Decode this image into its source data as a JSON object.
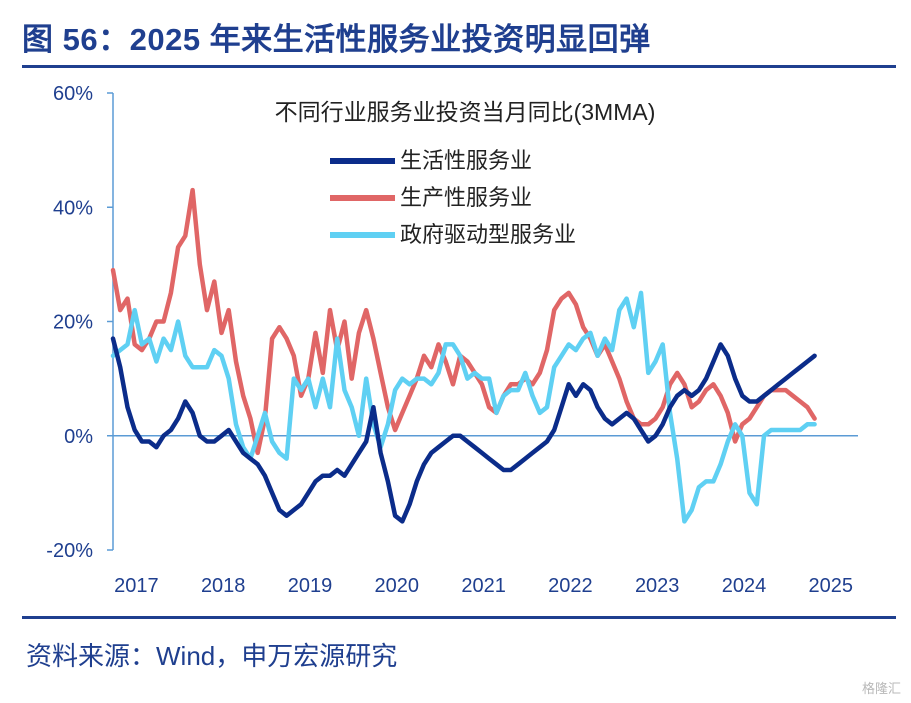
{
  "header": {
    "title": "图 56：2025 年来生活性服务业投资明显回弹"
  },
  "footer": {
    "source": "资料来源：Wind，申万宏源研究",
    "watermark": "格隆汇"
  },
  "colors": {
    "brand": "#1f3f8f",
    "series_dark_blue": "#0b2c8a",
    "series_red": "#e06666",
    "series_light_blue": "#5fd0f3"
  },
  "chart_data": {
    "type": "line",
    "title": "不同行业服务业投资当月同比(3MMA)",
    "xlabel": "",
    "ylabel": "",
    "x_start": "2017-01",
    "x_end": "2025-08",
    "x_ticks": [
      "2017",
      "2018",
      "2019",
      "2020",
      "2021",
      "2022",
      "2023",
      "2024",
      "2025"
    ],
    "y_ticks": [
      "60%",
      "40%",
      "20%",
      "0%",
      "-20%"
    ],
    "ylim": [
      -20,
      60
    ],
    "y_unit": "%",
    "legend_position": "top-center",
    "grid": false,
    "series": [
      {
        "name": "生活性服务业",
        "color": "#0b2c8a",
        "values": [
          17,
          12,
          5,
          1,
          -1,
          -1,
          -2,
          0,
          1,
          3,
          6,
          4,
          0,
          -1,
          -1,
          0,
          1,
          -1,
          -3,
          -4,
          -5,
          -7,
          -10,
          -13,
          -14,
          -13,
          -12,
          -10,
          -8,
          -7,
          -7,
          -6,
          -7,
          -5,
          -3,
          -1,
          5,
          -3,
          -8,
          -14,
          -15,
          -12,
          -8,
          -5,
          -3,
          -2,
          -1,
          0,
          0,
          -1,
          -2,
          -3,
          -4,
          -5,
          -6,
          -6,
          -5,
          -4,
          -3,
          -2,
          -1,
          1,
          5,
          9,
          7,
          9,
          8,
          5,
          3,
          2,
          3,
          4,
          3,
          1,
          -1,
          0,
          2,
          5,
          7,
          8,
          7,
          8,
          10,
          13,
          16,
          14,
          10,
          7,
          6,
          6,
          7,
          8,
          9,
          10,
          11,
          12,
          13,
          14
        ]
      },
      {
        "name": "生产性服务业",
        "color": "#e06666",
        "values": [
          29,
          22,
          24,
          16,
          15,
          17,
          20,
          20,
          25,
          33,
          35,
          43,
          30,
          22,
          27,
          18,
          22,
          13,
          7,
          3,
          -3,
          3,
          17,
          19,
          17,
          14,
          7,
          10,
          18,
          11,
          22,
          15,
          20,
          10,
          18,
          22,
          17,
          11,
          5,
          1,
          4,
          7,
          10,
          14,
          12,
          16,
          13,
          9,
          14,
          13,
          11,
          9,
          5,
          4,
          7,
          9,
          9,
          10,
          9,
          11,
          15,
          22,
          24,
          25,
          23,
          19,
          17,
          14,
          16,
          13,
          10,
          6,
          3,
          2,
          2,
          3,
          5,
          9,
          11,
          9,
          5,
          6,
          8,
          9,
          7,
          4,
          -1,
          2,
          3,
          5,
          7,
          8,
          8,
          8,
          7,
          6,
          5,
          3
        ]
      },
      {
        "name": "政府驱动型服务业",
        "color": "#5fd0f3",
        "values": [
          14,
          15,
          16,
          22,
          16,
          17,
          13,
          17,
          15,
          20,
          14,
          12,
          12,
          12,
          15,
          14,
          10,
          2,
          -2,
          -4,
          0,
          4,
          -1,
          -3,
          -4,
          10,
          8,
          10,
          5,
          10,
          5,
          17,
          8,
          5,
          0,
          10,
          2,
          -2,
          2,
          8,
          10,
          9,
          10,
          10,
          9,
          11,
          16,
          16,
          14,
          10,
          11,
          10,
          10,
          4,
          7,
          8,
          8,
          11,
          7,
          4,
          5,
          12,
          14,
          16,
          15,
          17,
          18,
          14,
          17,
          15,
          22,
          24,
          19,
          25,
          11,
          13,
          16,
          4,
          -4,
          -15,
          -13,
          -9,
          -8,
          -8,
          -5,
          -1,
          2,
          0,
          -10,
          -12,
          0,
          1,
          1,
          1,
          1,
          1,
          2,
          2
        ]
      }
    ]
  }
}
